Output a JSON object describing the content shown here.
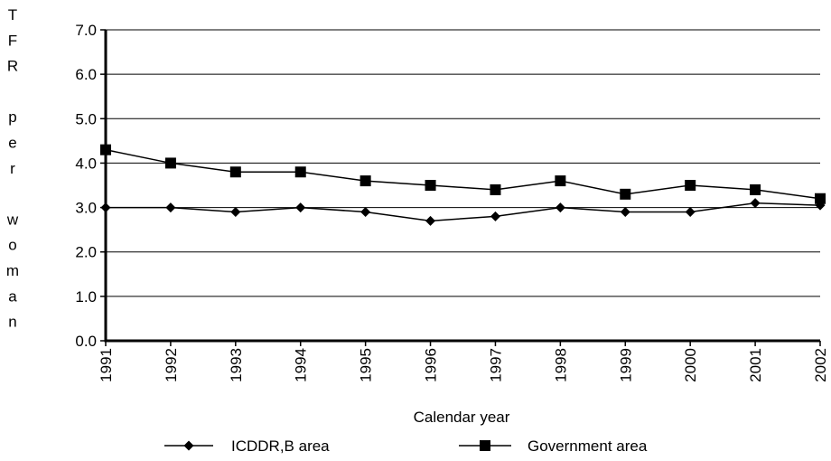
{
  "chart_data": {
    "type": "line",
    "title": "",
    "ylabel": "TFR per woman",
    "ylabel_lines": [
      "T",
      "F",
      "R",
      "",
      "p",
      "e",
      "r",
      "",
      "w",
      "o",
      "m",
      "a",
      "n"
    ],
    "xlabel": "Calendar year",
    "ylim": [
      0,
      7
    ],
    "y_ticks": [
      "0.0",
      "1.0",
      "2.0",
      "3.0",
      "4.0",
      "5.0",
      "6.0",
      "7.0"
    ],
    "categories": [
      "1991",
      "1992",
      "1993",
      "1994",
      "1995",
      "1996",
      "1997",
      "1998",
      "1999",
      "2000",
      "2001",
      "2002"
    ],
    "grid": "horizontal",
    "legend_position": "bottom",
    "series": [
      {
        "name": "ICDDR,B area",
        "marker": "diamond",
        "color": "#000000",
        "values": [
          3.0,
          3.0,
          2.9,
          3.0,
          2.9,
          2.7,
          2.8,
          3.0,
          2.9,
          2.9,
          3.1,
          3.05
        ]
      },
      {
        "name": "Government area",
        "marker": "square",
        "color": "#000000",
        "values": [
          4.3,
          4.0,
          3.8,
          3.8,
          3.6,
          3.5,
          3.4,
          3.6,
          3.3,
          3.5,
          3.4,
          3.2
        ]
      }
    ]
  }
}
